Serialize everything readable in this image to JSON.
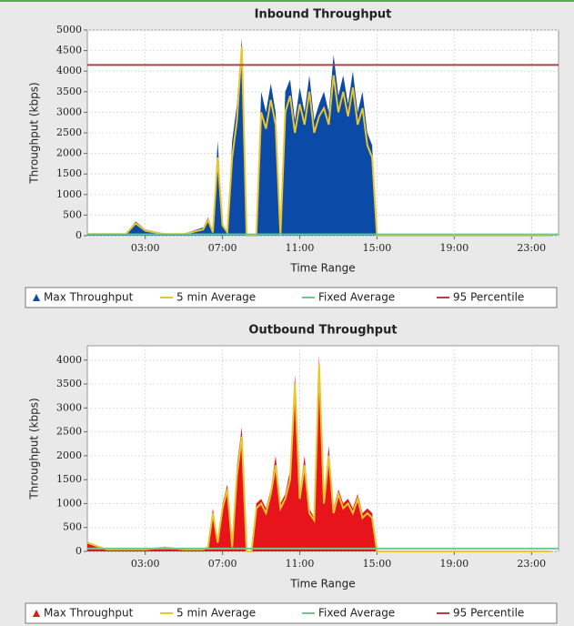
{
  "chart_data": [
    {
      "type": "area",
      "title": "Inbound Throughput",
      "xlabel": "Time Range",
      "ylabel": "Throughput (kbps)",
      "x": [
        0,
        1,
        2,
        2.5,
        3,
        4,
        5,
        6,
        6.25,
        6.5,
        6.75,
        7,
        7.25,
        7.5,
        7.75,
        8,
        8.25,
        8.5,
        8.75,
        9,
        9.25,
        9.5,
        9.75,
        10,
        10.25,
        10.5,
        10.75,
        11,
        11.25,
        11.5,
        11.75,
        12,
        12.25,
        12.5,
        12.75,
        13,
        13.25,
        13.5,
        13.75,
        14,
        14.25,
        14.5,
        14.75,
        15,
        16,
        17,
        18,
        19,
        20,
        21,
        22,
        23,
        24
      ],
      "xlim": [
        0,
        24.4
      ],
      "xticks": [
        {
          "value": 3,
          "label": "03:00"
        },
        {
          "value": 7,
          "label": "07:00"
        },
        {
          "value": 11,
          "label": "11:00"
        },
        {
          "value": 15,
          "label": "15:00"
        },
        {
          "value": 19,
          "label": "19:00"
        },
        {
          "value": 23,
          "label": "23:00"
        }
      ],
      "ylim": [
        0,
        5000
      ],
      "yticks": [
        0,
        500,
        1000,
        1500,
        2000,
        2500,
        3000,
        3500,
        4000,
        4500,
        5000
      ],
      "grid": true,
      "series": [
        {
          "name": "Max Throughput",
          "color": "#0b4aa6",
          "values": [
            50,
            50,
            50,
            350,
            150,
            50,
            50,
            200,
            450,
            100,
            2300,
            300,
            100,
            2300,
            3200,
            4800,
            0,
            0,
            0,
            3500,
            3000,
            3700,
            3000,
            0,
            3500,
            3800,
            2800,
            3600,
            3000,
            3900,
            2800,
            3200,
            3500,
            3000,
            4400,
            3400,
            3900,
            3200,
            4000,
            3000,
            3500,
            2500,
            2200,
            0,
            0,
            0,
            0,
            0,
            0,
            0,
            0,
            0,
            0
          ]
        },
        {
          "name": "5 min Average",
          "color": "#e8c630",
          "values": [
            40,
            40,
            40,
            300,
            120,
            40,
            40,
            150,
            380,
            80,
            1900,
            250,
            80,
            1900,
            2800,
            4600,
            0,
            0,
            0,
            3000,
            2600,
            3300,
            2700,
            0,
            3000,
            3400,
            2500,
            3200,
            2700,
            3500,
            2500,
            2900,
            3100,
            2700,
            3900,
            3000,
            3500,
            2900,
            3600,
            2700,
            3100,
            2200,
            1900,
            0,
            0,
            0,
            0,
            0,
            0,
            0,
            0,
            0,
            0
          ]
        }
      ],
      "reference_lines": [
        {
          "name": "Fixed Average",
          "color": "#6cc98e",
          "value": 30
        },
        {
          "name": "95 Percentile",
          "color": "#b0413e",
          "value": 4150
        }
      ]
    },
    {
      "type": "area",
      "title": "Outbound Throughput",
      "xlabel": "Time Range",
      "ylabel": "Throughput (kbps)",
      "x": [
        0,
        1,
        2,
        2.5,
        3,
        4,
        5,
        6,
        6.25,
        6.5,
        6.75,
        7,
        7.25,
        7.5,
        7.75,
        8,
        8.25,
        8.5,
        8.75,
        9,
        9.25,
        9.5,
        9.75,
        10,
        10.25,
        10.5,
        10.75,
        11,
        11.25,
        11.5,
        11.75,
        12,
        12.25,
        12.5,
        12.75,
        13,
        13.25,
        13.5,
        13.75,
        14,
        14.25,
        14.5,
        14.75,
        15,
        16,
        17,
        18,
        19,
        20,
        21,
        22,
        23,
        24
      ],
      "xlim": [
        0,
        24.4
      ],
      "xticks": [
        {
          "value": 3,
          "label": "03:00"
        },
        {
          "value": 7,
          "label": "07:00"
        },
        {
          "value": 11,
          "label": "11:00"
        },
        {
          "value": 15,
          "label": "15:00"
        },
        {
          "value": 19,
          "label": "19:00"
        },
        {
          "value": 23,
          "label": "23:00"
        }
      ],
      "ylim": [
        0,
        4300
      ],
      "yticks": [
        0,
        500,
        1000,
        1500,
        2000,
        2500,
        3000,
        3500,
        4000
      ],
      "grid": true,
      "series": [
        {
          "name": "Max Throughput",
          "color": "#e8141b",
          "values": [
            200,
            50,
            50,
            50,
            50,
            100,
            50,
            50,
            100,
            900,
            200,
            1000,
            1400,
            100,
            1800,
            2600,
            0,
            0,
            1000,
            1100,
            900,
            1300,
            2000,
            1000,
            1200,
            1700,
            3700,
            1200,
            2000,
            900,
            700,
            4100,
            1100,
            2200,
            900,
            1300,
            1000,
            1100,
            900,
            1200,
            800,
            900,
            800,
            0,
            0,
            0,
            0,
            0,
            0,
            0,
            0,
            0,
            0
          ]
        },
        {
          "name": "5 min Average",
          "color": "#e8c630",
          "values": [
            180,
            40,
            40,
            40,
            40,
            80,
            40,
            40,
            90,
            800,
            180,
            900,
            1300,
            90,
            1600,
            2400,
            0,
            0,
            900,
            1000,
            800,
            1200,
            1800,
            900,
            1100,
            1500,
            3500,
            1100,
            1800,
            800,
            650,
            3900,
            1000,
            2000,
            800,
            1200,
            900,
            1000,
            800,
            1100,
            700,
            800,
            700,
            0,
            0,
            0,
            0,
            0,
            0,
            0,
            0,
            0,
            0
          ]
        }
      ],
      "reference_lines": [
        {
          "name": "Fixed Average",
          "color": "#6cc98e",
          "value": 60
        },
        {
          "name": "95 Percentile",
          "color": "#b0413e",
          "value": null
        }
      ]
    }
  ]
}
